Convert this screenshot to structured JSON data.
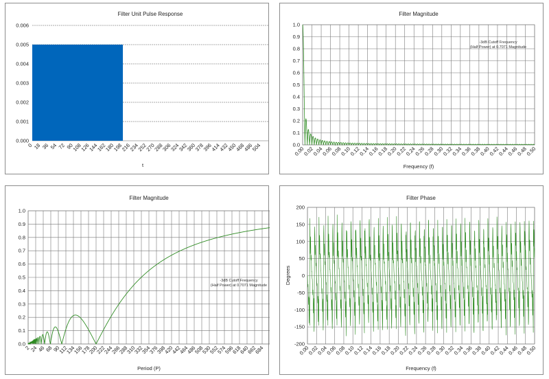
{
  "chart_data": [
    {
      "type": "bar",
      "title": "Filter Unit Pulse Response",
      "xlabel": "t",
      "ylabel": "",
      "ylim": [
        0,
        0.006
      ],
      "yticks": [
        "0.006",
        "0.005",
        "0.004",
        "0.003",
        "0.002",
        "0.001",
        "0.000"
      ],
      "xticks": [
        "0",
        "18",
        "36",
        "54",
        "72",
        "90",
        "108",
        "126",
        "144",
        "162",
        "180",
        "198",
        "216",
        "234",
        "252",
        "270",
        "288",
        "306",
        "324",
        "342",
        "360",
        "378",
        "396",
        "414",
        "432",
        "450",
        "468",
        "486",
        "504"
      ],
      "x": [
        0,
        200
      ],
      "series": [
        {
          "x_start": 0,
          "x_end": 200,
          "value": 0.005
        }
      ],
      "xlim": [
        0,
        521
      ],
      "color": "#0066bb",
      "grid": "horizontal"
    },
    {
      "type": "line",
      "title": "Filter Magnitude",
      "xlabel": "Frequency (f)",
      "ylabel": "",
      "xlim": [
        0,
        0.5
      ],
      "ylim": [
        0,
        1.0
      ],
      "yticks": [
        "1.0",
        "0.9",
        "0.8",
        "0.7",
        "0.6",
        "0.5",
        "0.4",
        "0.3",
        "0.2",
        "0.1",
        "0.0"
      ],
      "xticks": [
        "0.00",
        "0.02",
        "0.04",
        "0.06",
        "0.08",
        "0.10",
        "0.12",
        "0.14",
        "0.16",
        "0.18",
        "0.20",
        "0.22",
        "0.24",
        "0.26",
        "0.28",
        "0.30",
        "0.32",
        "0.34",
        "0.36",
        "0.38",
        "0.40",
        "0.42",
        "0.44",
        "0.46",
        "0.48",
        "0.50"
      ],
      "annotation": [
        "-3dB Cutoff Frequency",
        "(Half Power) at 0.7071 Magnitude"
      ],
      "color": "#2e8b22",
      "grid": "both"
    },
    {
      "type": "line",
      "title": "Filter Magnitude",
      "xlabel": "Period (P)",
      "ylabel": "",
      "xlim": [
        2,
        706
      ],
      "ylim": [
        0,
        1.0
      ],
      "yticks": [
        "1.0",
        "0.9",
        "0.8",
        "0.7",
        "0.6",
        "0.5",
        "0.4",
        "0.3",
        "0.2",
        "0.1",
        "0.0"
      ],
      "xticks": [
        "2",
        "24",
        "46",
        "68",
        "90",
        "112",
        "134",
        "156",
        "178",
        "200",
        "222",
        "244",
        "266",
        "288",
        "310",
        "332",
        "354",
        "376",
        "398",
        "420",
        "442",
        "464",
        "486",
        "508",
        "530",
        "552",
        "574",
        "596",
        "618",
        "640",
        "662",
        "684"
      ],
      "annotation": [
        "-3dB Cutoff Frequency",
        "(Half Power) at 0.7071 Magnitude"
      ],
      "color": "#2e8b22",
      "grid": "both"
    },
    {
      "type": "line",
      "title": "Filter Phase",
      "xlabel": "Frequency (f)",
      "ylabel": "Degrees",
      "xlim": [
        0,
        0.5
      ],
      "ylim": [
        -200,
        200
      ],
      "yticks": [
        "200",
        "150",
        "100",
        "50",
        "0",
        "-50",
        "-100",
        "-150",
        "-200"
      ],
      "xticks": [
        "0.00",
        "0.02",
        "0.04",
        "0.06",
        "0.08",
        "0.10",
        "0.12",
        "0.14",
        "0.16",
        "0.18",
        "0.20",
        "0.22",
        "0.24",
        "0.26",
        "0.28",
        "0.30",
        "0.32",
        "0.34",
        "0.36",
        "0.38",
        "0.40",
        "0.42",
        "0.44",
        "0.46",
        "0.48",
        "0.50"
      ],
      "color": "#2e8b22",
      "grid": "both"
    }
  ]
}
